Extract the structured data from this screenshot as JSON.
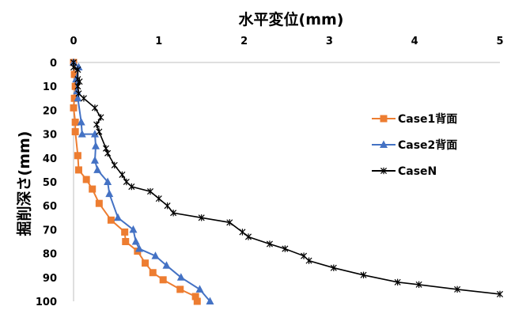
{
  "chart_data": {
    "type": "line",
    "title": "",
    "xlabel": "水平変位(mm)",
    "ylabel": "掘削深さ(mm)",
    "xlim": [
      0,
      5
    ],
    "ylim": [
      0,
      100
    ],
    "y_inverted": true,
    "x_axis_position": "top",
    "x_ticks": [
      "0",
      "1",
      "2",
      "3",
      "4",
      "5"
    ],
    "y_ticks": [
      "0",
      "10",
      "20",
      "30",
      "40",
      "50",
      "60",
      "70",
      "80",
      "90",
      "100"
    ],
    "grid": false,
    "legend_position": "right",
    "series": [
      {
        "name": "Case1背面",
        "color": "#ED7D31",
        "marker": "square",
        "points": [
          [
            0.0,
            0
          ],
          [
            0.01,
            5
          ],
          [
            0.02,
            10
          ],
          [
            0.01,
            15
          ],
          [
            0.0,
            19
          ],
          [
            0.02,
            25
          ],
          [
            0.02,
            29
          ],
          [
            0.05,
            39
          ],
          [
            0.06,
            45
          ],
          [
            0.15,
            49
          ],
          [
            0.22,
            53
          ],
          [
            0.3,
            59
          ],
          [
            0.44,
            66
          ],
          [
            0.6,
            71
          ],
          [
            0.61,
            75
          ],
          [
            0.75,
            79
          ],
          [
            0.84,
            84
          ],
          [
            0.93,
            88
          ],
          [
            1.05,
            91
          ],
          [
            1.25,
            95
          ],
          [
            1.43,
            98
          ],
          [
            1.45,
            100
          ]
        ]
      },
      {
        "name": "Case2背面",
        "color": "#4472C4",
        "marker": "triangle",
        "points": [
          [
            0.0,
            0
          ],
          [
            0.06,
            2
          ],
          [
            0.03,
            7
          ],
          [
            0.04,
            12
          ],
          [
            0.05,
            15
          ],
          [
            0.09,
            25
          ],
          [
            0.1,
            30
          ],
          [
            0.25,
            30
          ],
          [
            0.26,
            35
          ],
          [
            0.25,
            41
          ],
          [
            0.28,
            45
          ],
          [
            0.4,
            50
          ],
          [
            0.42,
            55
          ],
          [
            0.52,
            65
          ],
          [
            0.7,
            70
          ],
          [
            0.73,
            75
          ],
          [
            0.77,
            78
          ],
          [
            0.96,
            81
          ],
          [
            1.09,
            85
          ],
          [
            1.26,
            90
          ],
          [
            1.48,
            95
          ],
          [
            1.6,
            100
          ]
        ]
      },
      {
        "name": "CaseN",
        "color": "#000000",
        "marker": "star",
        "points": [
          [
            0.0,
            0
          ],
          [
            0.0,
            2
          ],
          [
            0.05,
            3
          ],
          [
            0.05,
            7
          ],
          [
            0.07,
            8
          ],
          [
            0.05,
            10
          ],
          [
            0.06,
            13
          ],
          [
            0.12,
            15
          ],
          [
            0.25,
            19
          ],
          [
            0.32,
            23
          ],
          [
            0.27,
            26
          ],
          [
            0.3,
            29
          ],
          [
            0.38,
            36
          ],
          [
            0.4,
            38
          ],
          [
            0.48,
            43
          ],
          [
            0.57,
            47
          ],
          [
            0.62,
            50
          ],
          [
            0.68,
            52
          ],
          [
            0.9,
            54
          ],
          [
            1.0,
            57
          ],
          [
            1.1,
            60
          ],
          [
            1.17,
            63
          ],
          [
            1.5,
            65
          ],
          [
            1.83,
            67
          ],
          [
            1.98,
            71
          ],
          [
            2.05,
            73
          ],
          [
            2.3,
            76
          ],
          [
            2.48,
            78
          ],
          [
            2.7,
            81
          ],
          [
            2.76,
            83
          ],
          [
            3.05,
            86
          ],
          [
            3.4,
            89
          ],
          [
            3.8,
            92
          ],
          [
            4.05,
            93
          ],
          [
            4.5,
            95
          ],
          [
            5.0,
            97
          ]
        ]
      }
    ]
  }
}
